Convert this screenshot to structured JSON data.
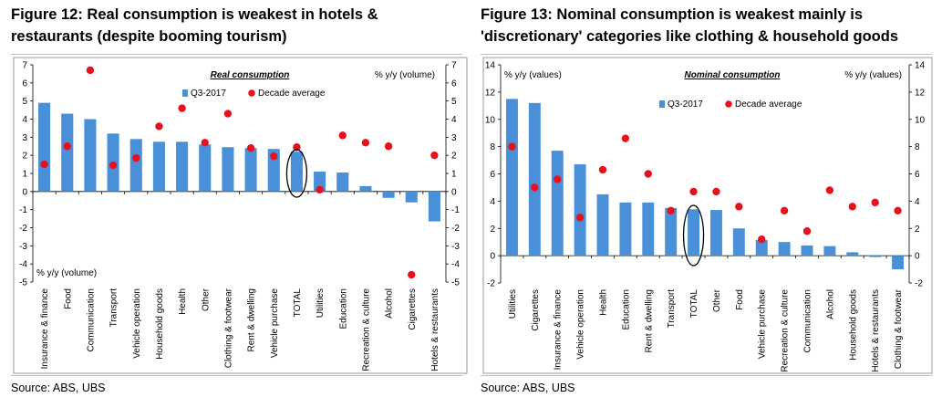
{
  "figures": [
    {
      "title": "Figure 12: Real consumption is weakest in hotels &\nrestaurants (despite booming tourism)",
      "source": "Source:  ABS, UBS",
      "chart_data": {
        "type": "bar",
        "title": "Real consumption",
        "unit_right": "% y/y (volume)",
        "unit_left_bottom": "% y/y (volume)",
        "ylim": [
          -5,
          7
        ],
        "yticks": [
          -5,
          -4,
          -3,
          -2,
          -1,
          0,
          1,
          2,
          3,
          4,
          5,
          6,
          7
        ],
        "legend": [
          "Q3-2017",
          "Decade average"
        ],
        "highlight": "TOTAL",
        "categories": [
          "Insurance & finance",
          "Food",
          "Communication",
          "Transport",
          "Vehicle operation",
          "Household goods",
          "Health",
          "Other",
          "Clothing & footwear",
          "Rent & dwelling",
          "Vehicle purchase",
          "TOTAL",
          "Utilities",
          "Education",
          "Recreation & culture",
          "Alcohol",
          "Cigarettes",
          "Hotels & restaurants"
        ],
        "series": [
          {
            "name": "Q3-2017",
            "kind": "bar",
            "color": "#4a90d9",
            "values": [
              4.9,
              4.3,
              4.0,
              3.2,
              2.9,
              2.75,
              2.75,
              2.6,
              2.45,
              2.4,
              2.35,
              2.2,
              1.1,
              1.05,
              0.3,
              -0.35,
              -0.6,
              -1.65
            ]
          },
          {
            "name": "Decade average",
            "kind": "dot",
            "color": "#e8101c",
            "values": [
              1.5,
              2.5,
              6.7,
              1.45,
              1.85,
              3.6,
              4.6,
              2.7,
              4.3,
              2.4,
              1.95,
              2.45,
              0.1,
              3.1,
              2.7,
              2.5,
              -4.6,
              2.0
            ]
          }
        ]
      }
    },
    {
      "title": "Figure 13: Nominal consumption is weakest mainly is\n'discretionary' categories like clothing & household goods",
      "source": "Source:  ABS, UBS",
      "chart_data": {
        "type": "bar",
        "title": "Nominal consumption",
        "unit_left": "% y/y (values)",
        "unit_right": "% y/y (values)",
        "ylim": [
          -2,
          14
        ],
        "yticks": [
          -2,
          0,
          2,
          4,
          6,
          8,
          10,
          12,
          14
        ],
        "legend": [
          "Q3-2017",
          "Decade average"
        ],
        "highlight": "TOTAL",
        "categories": [
          "Utilities",
          "Cigarettes",
          "Insurance & finance",
          "Vehicle operation",
          "Health",
          "Education",
          "Rent & dwelling",
          "Transport",
          "TOTAL",
          "Other",
          "Food",
          "Vehicle purchase",
          "Recreation & culture",
          "Communication",
          "Alcohol",
          "Household goods",
          "Hotels & restaurants",
          "Clothing & footwear"
        ],
        "series": [
          {
            "name": "Q3-2017",
            "kind": "bar",
            "color": "#4a90d9",
            "values": [
              11.5,
              11.2,
              7.7,
              6.7,
              4.5,
              3.9,
              3.9,
              3.5,
              3.4,
              3.35,
              2.0,
              1.15,
              1.0,
              0.75,
              0.7,
              0.25,
              -0.1,
              -1.0
            ]
          },
          {
            "name": "Decade average",
            "kind": "dot",
            "color": "#e8101c",
            "values": [
              8.0,
              5.0,
              5.6,
              2.8,
              6.3,
              8.6,
              6.0,
              3.3,
              4.7,
              4.7,
              3.6,
              1.2,
              3.3,
              1.8,
              4.8,
              3.6,
              3.9,
              3.3
            ]
          }
        ]
      }
    }
  ]
}
